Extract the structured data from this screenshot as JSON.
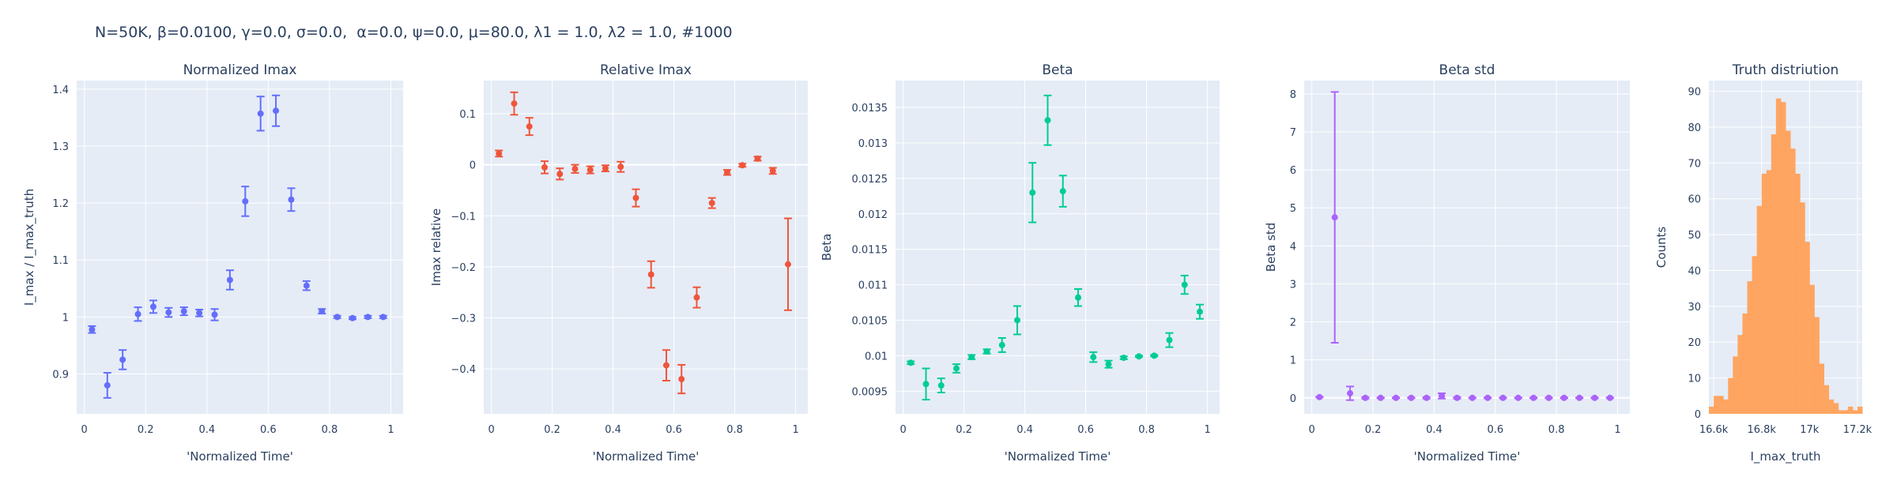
{
  "suptitle": "N=50K, β=0.0100, γ=0.0, σ=0.0,  α=0.0, ψ=0.0, μ=80.0, λ1 = 1.0, λ2 = 1.0, #1000",
  "colors": {
    "plot_bg": "#e5ecf6",
    "grid": "#ffffff",
    "text": "#2a3f5f",
    "s1": "#636efa",
    "s2": "#ef553b",
    "s3": "#00cc96",
    "s4": "#ab63fa",
    "s5": "#ffa15a"
  },
  "chart_data": [
    {
      "type": "scatter",
      "title": "Normalized Imax",
      "xlabel": "'Normalized Time'",
      "ylabel": "I_max / I_max_truth",
      "xlim": [
        -0.025,
        1.04
      ],
      "ylim": [
        0.83,
        1.415
      ],
      "xticks": [
        0,
        0.2,
        0.4,
        0.6,
        0.8,
        1
      ],
      "xtick_labels": [
        "0",
        "0.2",
        "0.4",
        "0.6",
        "0.8",
        "1"
      ],
      "yticks": [
        0.9,
        1.0,
        1.1,
        1.2,
        1.3,
        1.4
      ],
      "ytick_labels": [
        "0.9",
        "1",
        "1.1",
        "1.2",
        "1.3",
        "1.4"
      ],
      "x": [
        0.025,
        0.075,
        0.125,
        0.175,
        0.225,
        0.275,
        0.325,
        0.375,
        0.425,
        0.475,
        0.525,
        0.575,
        0.625,
        0.675,
        0.725,
        0.775,
        0.825,
        0.875,
        0.925,
        0.975
      ],
      "y": [
        0.978,
        0.88,
        0.925,
        1.005,
        1.018,
        1.008,
        1.01,
        1.007,
        1.004,
        1.065,
        1.203,
        1.357,
        1.362,
        1.206,
        1.055,
        1.01,
        1.0,
        0.998,
        1.0,
        1.0
      ],
      "err": [
        0.006,
        0.022,
        0.017,
        0.012,
        0.011,
        0.008,
        0.007,
        0.006,
        0.01,
        0.017,
        0.026,
        0.03,
        0.027,
        0.02,
        0.008,
        0.004,
        0.002,
        0.002,
        0.002,
        0.002
      ]
    },
    {
      "type": "scatter",
      "title": "Relative Imax",
      "xlabel": "'Normalized Time'",
      "ylabel": "Imax relative",
      "xlim": [
        -0.025,
        1.04
      ],
      "ylim": [
        -0.488,
        0.165
      ],
      "xticks": [
        0,
        0.2,
        0.4,
        0.6,
        0.8,
        1
      ],
      "xtick_labels": [
        "0",
        "0.2",
        "0.4",
        "0.6",
        "0.8",
        "1"
      ],
      "yticks": [
        -0.4,
        -0.3,
        -0.2,
        -0.1,
        0,
        0.1
      ],
      "ytick_labels": [
        "−0.4",
        "−0.3",
        "−0.2",
        "−0.1",
        "0",
        "0.1"
      ],
      "x": [
        0.025,
        0.075,
        0.125,
        0.175,
        0.225,
        0.275,
        0.325,
        0.375,
        0.425,
        0.475,
        0.525,
        0.575,
        0.625,
        0.675,
        0.725,
        0.775,
        0.825,
        0.875,
        0.925,
        0.975
      ],
      "y": [
        0.022,
        0.12,
        0.075,
        -0.005,
        -0.018,
        -0.008,
        -0.01,
        -0.007,
        -0.004,
        -0.065,
        -0.215,
        -0.393,
        -0.42,
        -0.26,
        -0.075,
        -0.015,
        -0.001,
        0.012,
        -0.012,
        -0.195
      ],
      "err": [
        0.006,
        0.022,
        0.017,
        0.012,
        0.011,
        0.008,
        0.007,
        0.006,
        0.01,
        0.017,
        0.026,
        0.03,
        0.028,
        0.02,
        0.01,
        0.005,
        0.003,
        0.004,
        0.006,
        0.09
      ]
    },
    {
      "type": "scatter",
      "title": "Beta",
      "xlabel": "'Normalized Time'",
      "ylabel": "Beta",
      "xlim": [
        -0.025,
        1.04
      ],
      "ylim": [
        0.00918,
        0.01388
      ],
      "xticks": [
        0,
        0.2,
        0.4,
        0.6,
        0.8,
        1
      ],
      "xtick_labels": [
        "0",
        "0.2",
        "0.4",
        "0.6",
        "0.8",
        "1"
      ],
      "yticks": [
        0.0095,
        0.01,
        0.0105,
        0.011,
        0.0115,
        0.012,
        0.0125,
        0.013,
        0.0135
      ],
      "ytick_labels": [
        "0.0095",
        "0.01",
        "0.0105",
        "0.011",
        "0.0115",
        "0.012",
        "0.0125",
        "0.013",
        "0.0135"
      ],
      "x": [
        0.025,
        0.075,
        0.125,
        0.175,
        0.225,
        0.275,
        0.325,
        0.375,
        0.425,
        0.475,
        0.525,
        0.575,
        0.625,
        0.675,
        0.725,
        0.775,
        0.825,
        0.875,
        0.925,
        0.975
      ],
      "y": [
        0.0099,
        0.0096,
        0.00958,
        0.00982,
        0.00998,
        0.01006,
        0.01015,
        0.0105,
        0.0123,
        0.01332,
        0.01232,
        0.01082,
        0.00998,
        0.00988,
        0.00997,
        0.00999,
        0.01,
        0.01022,
        0.011,
        0.01062
      ],
      "err": [
        2e-05,
        0.00022,
        0.0001,
        6e-05,
        3e-05,
        3e-05,
        0.0001,
        0.0002,
        0.00042,
        0.00035,
        0.00022,
        0.00012,
        7e-05,
        5e-05,
        2e-05,
        1e-05,
        1e-05,
        0.0001,
        0.00013,
        0.0001
      ]
    },
    {
      "type": "scatter",
      "title": "Beta std",
      "xlabel": "'Normalized Time'",
      "ylabel": "Beta std",
      "xlim": [
        -0.025,
        1.04
      ],
      "ylim": [
        -0.42,
        8.35
      ],
      "xticks": [
        0,
        0.2,
        0.4,
        0.6,
        0.8,
        1
      ],
      "xtick_labels": [
        "0",
        "0.2",
        "0.4",
        "0.6",
        "0.8",
        "1"
      ],
      "yticks": [
        0,
        1,
        2,
        3,
        4,
        5,
        6,
        7,
        8
      ],
      "ytick_labels": [
        "0",
        "1",
        "2",
        "3",
        "4",
        "5",
        "6",
        "7",
        "8"
      ],
      "x": [
        0.025,
        0.075,
        0.125,
        0.175,
        0.225,
        0.275,
        0.325,
        0.375,
        0.425,
        0.475,
        0.525,
        0.575,
        0.625,
        0.675,
        0.725,
        0.775,
        0.825,
        0.875,
        0.925,
        0.975
      ],
      "y": [
        0.02,
        4.75,
        0.12,
        0.0,
        0.0,
        0.0,
        0.0,
        0.0,
        0.05,
        0.0,
        0.0,
        0.0,
        0.0,
        0.0,
        0.0,
        0.0,
        0.0,
        0.0,
        0.0,
        0.0
      ],
      "err": [
        0.01,
        3.3,
        0.18,
        0.02,
        0.01,
        0.01,
        0.01,
        0.02,
        0.07,
        0.02,
        0.01,
        0.01,
        0.01,
        0.01,
        0.01,
        0.01,
        0.01,
        0.01,
        0.01,
        0.01
      ]
    },
    {
      "type": "bar",
      "title": "Truth distriution",
      "xlabel": "I_max_truth",
      "ylabel": "Counts",
      "xlim": [
        16580,
        17220
      ],
      "ylim": [
        0,
        93
      ],
      "xticks": [
        16600,
        16800,
        17000,
        17200
      ],
      "xtick_labels": [
        "16.6k",
        "16.8k",
        "17k",
        "17.2k"
      ],
      "yticks": [
        0,
        10,
        20,
        30,
        40,
        50,
        60,
        70,
        80,
        90
      ],
      "ytick_labels": [
        "0",
        "10",
        "20",
        "30",
        "40",
        "50",
        "60",
        "70",
        "80",
        "90"
      ],
      "bin_start": 16580,
      "bin_width": 20,
      "values": [
        2,
        5,
        5,
        4,
        10,
        16,
        22,
        28,
        37,
        44,
        58,
        67,
        68,
        78,
        88,
        87,
        79,
        74,
        67,
        59,
        48,
        36,
        27,
        14,
        8,
        4,
        3,
        1,
        1,
        2,
        1,
        2
      ]
    }
  ]
}
